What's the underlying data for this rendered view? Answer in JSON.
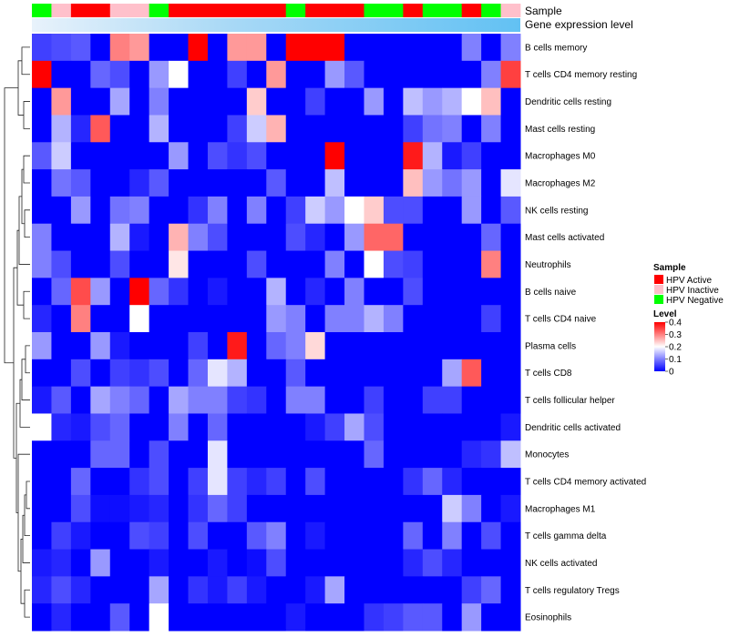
{
  "chart_data": {
    "type": "heatmap",
    "title": "",
    "annotation_labels": [
      "Sample",
      "Gene expression level"
    ],
    "rows": [
      "B cells memory",
      "T cells CD4 memory resting",
      "Dendritic cells resting",
      "Mast cells resting",
      "Macrophages M0",
      "Macrophages M2",
      "NK cells resting",
      "Mast cells activated",
      "Neutrophils",
      "B cells naive",
      "T cells CD4 naive",
      "Plasma cells",
      "T cells CD8",
      "T cells follicular helper",
      "Dendritic cells activated",
      "Monocytes",
      "T cells CD4 memory activated",
      "Macrophages M1",
      "T cells gamma delta",
      "NK cells activated",
      "T cells regulatory  Tregs",
      "Eosinophils"
    ],
    "sample_groups": [
      "HPV Negative",
      "HPV Inactive",
      "HPV Active",
      "HPV Active",
      "HPV Inactive",
      "HPV Inactive",
      "HPV Negative",
      "HPV Active",
      "HPV Active",
      "HPV Active",
      "HPV Active",
      "HPV Active",
      "HPV Active",
      "HPV Negative",
      "HPV Active",
      "HPV Active",
      "HPV Active",
      "HPV Negative",
      "HPV Negative",
      "HPV Active",
      "HPV Negative",
      "HPV Negative",
      "HPV Active",
      "HPV Negative",
      "HPV Inactive"
    ],
    "values": [
      [
        0.05,
        0.06,
        0.07,
        0.0,
        0.3,
        0.28,
        0.0,
        0.0,
        0.4,
        0.0,
        0.28,
        0.28,
        0.0,
        0.4,
        0.4,
        0.4,
        0.0,
        0.0,
        0.0,
        0.0,
        0.0,
        0.0,
        0.1,
        0.0,
        0.1
      ],
      [
        0.4,
        0.0,
        0.0,
        0.08,
        0.06,
        0.0,
        0.12,
        0.2,
        0.0,
        0.0,
        0.05,
        0.0,
        0.28,
        0.0,
        0.0,
        0.12,
        0.07,
        0.0,
        0.0,
        0.0,
        0.0,
        0.0,
        0.0,
        0.1,
        0.35
      ],
      [
        0.0,
        0.28,
        0.0,
        0.0,
        0.13,
        0.0,
        0.1,
        0.0,
        0.0,
        0.0,
        0.0,
        0.24,
        0.0,
        0.0,
        0.05,
        0.0,
        0.0,
        0.12,
        0.0,
        0.15,
        0.12,
        0.14,
        0.2,
        0.25,
        0.0
      ],
      [
        0.0,
        0.14,
        0.03,
        0.33,
        0.0,
        0.0,
        0.14,
        0.0,
        0.0,
        0.0,
        0.05,
        0.16,
        0.26,
        0.0,
        0.0,
        0.0,
        0.0,
        0.0,
        0.0,
        0.05,
        0.09,
        0.1,
        0.0,
        0.1,
        0.0
      ],
      [
        0.07,
        0.16,
        0.0,
        0.0,
        0.0,
        0.0,
        0.0,
        0.12,
        0.0,
        0.06,
        0.04,
        0.06,
        0.0,
        0.0,
        0.0,
        0.4,
        0.0,
        0.0,
        0.0,
        0.38,
        0.14,
        0.02,
        0.05,
        0.0,
        0.0
      ],
      [
        0.0,
        0.09,
        0.07,
        0.0,
        0.0,
        0.03,
        0.07,
        0.0,
        0.0,
        0.0,
        0.0,
        0.0,
        0.07,
        0.0,
        0.0,
        0.15,
        0.0,
        0.0,
        0.0,
        0.25,
        0.12,
        0.09,
        0.12,
        0.0,
        0.18
      ],
      [
        0.0,
        0.0,
        0.12,
        0.0,
        0.09,
        0.1,
        0.0,
        0.0,
        0.04,
        0.1,
        0.0,
        0.1,
        0.0,
        0.05,
        0.16,
        0.12,
        0.2,
        0.24,
        0.06,
        0.06,
        0.0,
        0.0,
        0.12,
        0.0,
        0.07
      ],
      [
        0.1,
        0.0,
        0.0,
        0.0,
        0.14,
        0.02,
        0.0,
        0.26,
        0.1,
        0.06,
        0.0,
        0.0,
        0.0,
        0.06,
        0.03,
        0.0,
        0.12,
        0.32,
        0.32,
        0.0,
        0.0,
        0.0,
        0.0,
        0.08,
        0.0
      ],
      [
        0.1,
        0.06,
        0.0,
        0.0,
        0.06,
        0.0,
        0.0,
        0.22,
        0.0,
        0.0,
        0.0,
        0.06,
        0.0,
        0.0,
        0.0,
        0.1,
        0.0,
        0.2,
        0.06,
        0.05,
        0.0,
        0.0,
        0.0,
        0.3,
        0.0
      ],
      [
        0.0,
        0.08,
        0.34,
        0.12,
        0.0,
        0.4,
        0.08,
        0.04,
        0.0,
        0.02,
        0.0,
        0.0,
        0.14,
        0.0,
        0.03,
        0.0,
        0.1,
        0.0,
        0.0,
        0.06,
        0.0,
        0.0,
        0.0,
        0.0,
        0.0
      ],
      [
        0.03,
        0.0,
        0.3,
        0.0,
        0.0,
        0.2,
        0.0,
        0.0,
        0.0,
        0.0,
        0.0,
        0.0,
        0.12,
        0.1,
        0.0,
        0.1,
        0.1,
        0.14,
        0.1,
        0.0,
        0.0,
        0.0,
        0.0,
        0.05,
        0.0
      ],
      [
        0.12,
        0.0,
        0.0,
        0.12,
        0.02,
        0.0,
        0.0,
        0.0,
        0.05,
        0.0,
        0.38,
        0.0,
        0.08,
        0.1,
        0.23,
        0.0,
        0.0,
        0.0,
        0.0,
        0.0,
        0.0,
        0.0,
        0.0,
        0.0,
        0.0
      ],
      [
        0.0,
        0.0,
        0.06,
        0.0,
        0.05,
        0.04,
        0.06,
        0.0,
        0.08,
        0.18,
        0.14,
        0.0,
        0.0,
        0.07,
        0.0,
        0.0,
        0.0,
        0.0,
        0.0,
        0.0,
        0.0,
        0.13,
        0.33,
        0.0,
        0.0
      ],
      [
        0.02,
        0.07,
        0.0,
        0.13,
        0.1,
        0.08,
        0.0,
        0.13,
        0.1,
        0.1,
        0.05,
        0.04,
        0.0,
        0.1,
        0.1,
        0.0,
        0.0,
        0.05,
        0.0,
        0.0,
        0.05,
        0.05,
        0.0,
        0.0,
        0.0
      ],
      [
        0.2,
        0.03,
        0.02,
        0.06,
        0.08,
        0.0,
        0.0,
        0.1,
        0.0,
        0.08,
        0.0,
        0.0,
        0.0,
        0.0,
        0.02,
        0.05,
        0.13,
        0.06,
        0.0,
        0.0,
        0.0,
        0.0,
        0.0,
        0.0,
        0.02
      ],
      [
        0.0,
        0.0,
        0.0,
        0.08,
        0.08,
        0.0,
        0.06,
        0.0,
        0.0,
        0.18,
        0.0,
        0.0,
        0.0,
        0.0,
        0.0,
        0.0,
        0.0,
        0.08,
        0.0,
        0.0,
        0.0,
        0.0,
        0.03,
        0.04,
        0.15
      ],
      [
        0.0,
        0.0,
        0.08,
        0.0,
        0.0,
        0.04,
        0.06,
        0.0,
        0.05,
        0.18,
        0.05,
        0.03,
        0.05,
        0.0,
        0.06,
        0.0,
        0.0,
        0.0,
        0.0,
        0.04,
        0.08,
        0.03,
        0.0,
        0.0,
        0.0
      ],
      [
        0.0,
        0.0,
        0.06,
        0.01,
        0.01,
        0.02,
        0.03,
        0.0,
        0.04,
        0.08,
        0.05,
        0.0,
        0.0,
        0.0,
        0.0,
        0.0,
        0.0,
        0.0,
        0.0,
        0.0,
        0.0,
        0.16,
        0.1,
        0.0,
        0.02
      ],
      [
        0.0,
        0.05,
        0.02,
        0.0,
        0.0,
        0.06,
        0.05,
        0.0,
        0.06,
        0.0,
        0.0,
        0.07,
        0.1,
        0.0,
        0.02,
        0.0,
        0.0,
        0.0,
        0.0,
        0.08,
        0.0,
        0.1,
        0.0,
        0.06,
        0.0
      ],
      [
        0.02,
        0.03,
        0.0,
        0.12,
        0.0,
        0.0,
        0.02,
        0.0,
        0.0,
        0.02,
        0.0,
        0.01,
        0.06,
        0.0,
        0.0,
        0.0,
        0.0,
        0.0,
        0.0,
        0.03,
        0.06,
        0.03,
        0.0,
        0.0,
        0.0
      ],
      [
        0.03,
        0.06,
        0.03,
        0.0,
        0.0,
        0.0,
        0.13,
        0.0,
        0.04,
        0.02,
        0.05,
        0.02,
        0.0,
        0.0,
        0.02,
        0.13,
        0.0,
        0.0,
        0.0,
        0.0,
        0.0,
        0.0,
        0.05,
        0.08,
        0.0
      ],
      [
        0.0,
        0.03,
        0.0,
        0.0,
        0.07,
        0.0,
        0.2,
        0.0,
        0.0,
        0.0,
        0.0,
        0.0,
        0.0,
        0.02,
        0.0,
        0.0,
        0.0,
        0.04,
        0.05,
        0.07,
        0.07,
        0.0,
        0.12,
        0.0,
        0.0
      ]
    ],
    "legend": {
      "sample_title": "Sample",
      "sample_entries": [
        {
          "label": "HPV Active",
          "color": "#ff0000"
        },
        {
          "label": "HPV Inactive",
          "color": "#ffc0cb"
        },
        {
          "label": "HPV Negative",
          "color": "#00ff00"
        }
      ],
      "level_title": "Level",
      "level_ticks": [
        {
          "value": 0.4,
          "label": "0.4"
        },
        {
          "value": 0.3,
          "label": "0.3"
        },
        {
          "value": 0.2,
          "label": "0.2"
        },
        {
          "value": 0.1,
          "label": "0.1"
        },
        {
          "value": 0.0,
          "label": "0"
        }
      ],
      "color_scale": {
        "low": "#0000ff",
        "mid": "#ffffff",
        "high": "#ff0000",
        "min": 0,
        "midpoint": 0.2,
        "max": 0.4
      }
    },
    "expression_bar_color": "#62c1f3"
  }
}
